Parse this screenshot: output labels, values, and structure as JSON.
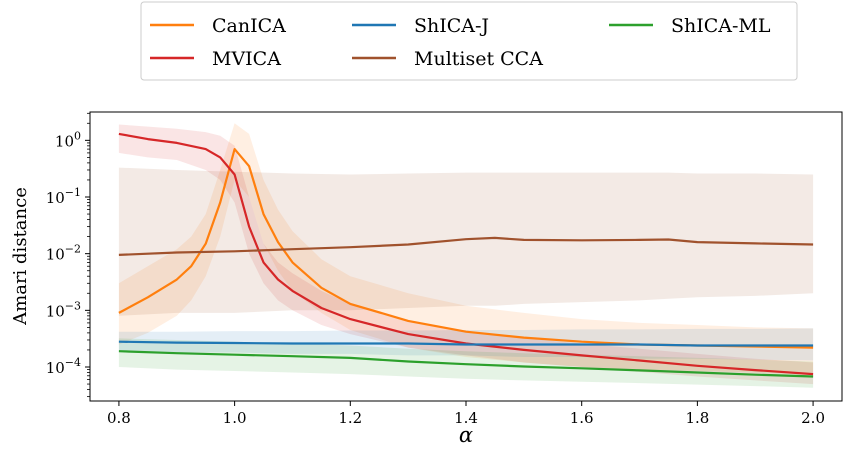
{
  "chart_data": {
    "type": "line",
    "xlabel": "α",
    "ylabel": "Amari distance",
    "xlim": [
      0.75,
      2.05
    ],
    "ylim_log10": [
      -4.6,
      0.5
    ],
    "yscale": "log",
    "x_ticks": [
      0.8,
      1.0,
      1.2,
      1.4,
      1.6,
      1.8,
      2.0
    ],
    "x_tick_labels": [
      "0.8",
      "1.0",
      "1.2",
      "1.4",
      "1.6",
      "1.8",
      "2.0"
    ],
    "y_ticks_log10": [
      0,
      -1,
      -2,
      -3,
      -4
    ],
    "y_tick_labels": [
      {
        "base": "10",
        "exp": "0"
      },
      {
        "base": "10",
        "exp": "−1"
      },
      {
        "base": "10",
        "exp": "−2"
      },
      {
        "base": "10",
        "exp": "−3"
      },
      {
        "base": "10",
        "exp": "−4"
      }
    ],
    "legend_position": "top-center, outside plot",
    "grid": false,
    "series": [
      {
        "name": "CanICA",
        "color": "#ff7f0e",
        "x": [
          0.8,
          0.85,
          0.9,
          0.925,
          0.95,
          0.975,
          1.0,
          1.025,
          1.05,
          1.075,
          1.1,
          1.15,
          1.2,
          1.3,
          1.4,
          1.5,
          1.6,
          1.7,
          1.8,
          1.9,
          2.0
        ],
        "y": [
          0.0009,
          0.0017,
          0.0035,
          0.006,
          0.015,
          0.08,
          0.7,
          0.35,
          0.05,
          0.016,
          0.007,
          0.0025,
          0.0013,
          0.00065,
          0.00042,
          0.00033,
          0.00028,
          0.00025,
          0.00024,
          0.00023,
          0.00022
        ],
        "band_lo": [
          0.00025,
          0.0004,
          0.0008,
          0.0015,
          0.004,
          0.02,
          0.2,
          0.1,
          0.015,
          0.005,
          0.0022,
          0.0009,
          0.00045,
          0.00022,
          0.00015,
          0.00012,
          0.0001,
          9e-05,
          8.5e-05,
          8e-05,
          7.5e-05
        ],
        "band_hi": [
          0.003,
          0.006,
          0.012,
          0.02,
          0.05,
          0.3,
          2.0,
          1.3,
          0.2,
          0.06,
          0.025,
          0.008,
          0.004,
          0.002,
          0.0012,
          0.0009,
          0.0007,
          0.0006,
          0.00055,
          0.0005,
          0.00048
        ]
      },
      {
        "name": "MVICA",
        "color": "#d62728",
        "x": [
          0.8,
          0.85,
          0.9,
          0.95,
          0.975,
          1.0,
          1.025,
          1.05,
          1.075,
          1.1,
          1.15,
          1.2,
          1.3,
          1.4,
          1.5,
          1.6,
          1.7,
          1.8,
          1.9,
          2.0
        ],
        "y": [
          1.3,
          1.05,
          0.9,
          0.7,
          0.5,
          0.25,
          0.03,
          0.007,
          0.0035,
          0.0022,
          0.0011,
          0.0007,
          0.00038,
          0.00026,
          0.0002,
          0.00016,
          0.00013,
          0.000105,
          8.8e-05,
          7.5e-05
        ],
        "band_lo": [
          0.6,
          0.5,
          0.45,
          0.3,
          0.2,
          0.08,
          0.01,
          0.003,
          0.0015,
          0.001,
          0.00055,
          0.00038,
          0.00022,
          0.00016,
          0.00012,
          0.0001,
          8.2e-05,
          6.8e-05,
          5.8e-05,
          5e-05
        ],
        "band_hi": [
          1.9,
          1.75,
          1.6,
          1.4,
          1.2,
          0.8,
          0.1,
          0.015,
          0.007,
          0.0045,
          0.0022,
          0.0013,
          0.00065,
          0.00042,
          0.00032,
          0.00026,
          0.00021,
          0.00017,
          0.00014,
          0.00012
        ]
      },
      {
        "name": "ShICA-J",
        "color": "#1f77b4",
        "x": [
          0.8,
          0.9,
          1.0,
          1.1,
          1.2,
          1.3,
          1.4,
          1.5,
          1.6,
          1.7,
          1.8,
          1.9,
          2.0
        ],
        "y": [
          0.00028,
          0.00027,
          0.000265,
          0.00026,
          0.00026,
          0.00026,
          0.00025,
          0.00025,
          0.00025,
          0.00025,
          0.00024,
          0.00024,
          0.00024
        ],
        "band_lo": [
          0.00019,
          0.00018,
          0.00018,
          0.00017,
          0.00017,
          0.00016,
          0.00016,
          0.00015,
          0.00015,
          0.00014,
          0.00014,
          0.000135,
          0.00013
        ],
        "band_hi": [
          0.00042,
          0.00042,
          0.00043,
          0.00043,
          0.00044,
          0.00044,
          0.00045,
          0.00045,
          0.00046,
          0.00046,
          0.00047,
          0.00047,
          0.00048
        ]
      },
      {
        "name": "Multiset CCA",
        "color": "#a0522d",
        "x": [
          0.8,
          0.9,
          1.0,
          1.1,
          1.2,
          1.3,
          1.4,
          1.45,
          1.5,
          1.6,
          1.7,
          1.75,
          1.8,
          1.9,
          2.0
        ],
        "y": [
          0.0095,
          0.0105,
          0.011,
          0.012,
          0.013,
          0.0145,
          0.018,
          0.019,
          0.0175,
          0.0172,
          0.0175,
          0.0178,
          0.016,
          0.0152,
          0.0145
        ],
        "band_lo": [
          0.0008,
          0.0009,
          0.0009,
          0.001,
          0.001,
          0.0011,
          0.0012,
          0.0012,
          0.0013,
          0.0014,
          0.0015,
          0.0016,
          0.0017,
          0.0018,
          0.002
        ],
        "band_hi": [
          0.33,
          0.3,
          0.28,
          0.26,
          0.25,
          0.26,
          0.27,
          0.27,
          0.27,
          0.27,
          0.27,
          0.27,
          0.26,
          0.26,
          0.25
        ]
      },
      {
        "name": "ShICA-ML",
        "color": "#2ca02c",
        "x": [
          0.8,
          0.9,
          1.0,
          1.1,
          1.2,
          1.3,
          1.4,
          1.5,
          1.6,
          1.7,
          1.8,
          1.9,
          2.0
        ],
        "y": [
          0.00019,
          0.000175,
          0.000165,
          0.000155,
          0.000145,
          0.000125,
          0.000112,
          0.000102,
          9.5e-05,
          8.7e-05,
          8e-05,
          7.3e-05,
          6.8e-05
        ],
        "band_lo": [
          0.0001,
          9e-05,
          8.5e-05,
          8e-05,
          7.5e-05,
          6.8e-05,
          6.2e-05,
          5.8e-05,
          5.5e-05,
          5.2e-05,
          4.9e-05,
          4.6e-05,
          4.3e-05
        ],
        "band_hi": [
          0.00032,
          0.0003,
          0.00028,
          0.00026,
          0.00024,
          0.00021,
          0.00019,
          0.000175,
          0.000165,
          0.000155,
          0.000145,
          0.000135,
          0.000125
        ]
      }
    ],
    "legend_order": [
      "CanICA",
      "MVICA",
      "ShICA-J",
      "Multiset CCA",
      "ShICA-ML"
    ]
  }
}
